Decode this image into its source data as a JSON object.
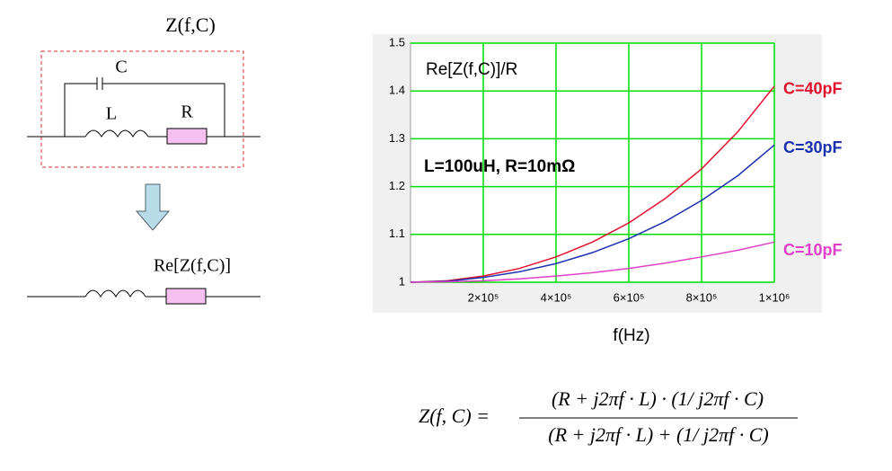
{
  "diagram": {
    "title": "Z(f,C)",
    "capacitor": "C",
    "inductor": "L",
    "resistor": "R",
    "result": "Re[Z(f,C)]"
  },
  "chart_data": {
    "type": "line",
    "annotations": [
      "Re[Z(f,C)]/R",
      "L=100uH, R=10mΩ"
    ],
    "x_label": "f(Hz)",
    "x": [
      0,
      100000,
      200000,
      300000,
      400000,
      500000,
      600000,
      700000,
      800000,
      900000,
      1000000
    ],
    "series": [
      {
        "name": "C=40pF",
        "color": "#e0102c",
        "values": [
          1,
          1.003,
          1.013,
          1.029,
          1.053,
          1.084,
          1.124,
          1.175,
          1.237,
          1.315,
          1.41
        ]
      },
      {
        "name": "C=30pF",
        "color": "#1a30b0",
        "values": [
          1,
          1.002,
          1.01,
          1.022,
          1.039,
          1.062,
          1.091,
          1.127,
          1.171,
          1.223,
          1.287
        ]
      },
      {
        "name": "C=10pF",
        "color": "#e040c8",
        "values": [
          1,
          1.001,
          1.003,
          1.007,
          1.013,
          1.02,
          1.029,
          1.04,
          1.053,
          1.067,
          1.084
        ]
      }
    ],
    "xlim": [
      0,
      1000000
    ],
    "ylim": [
      1,
      1.5
    ],
    "xticks": [
      {
        "value": 200000,
        "label": "2×10⁵"
      },
      {
        "value": 400000,
        "label": "4×10⁵"
      },
      {
        "value": 600000,
        "label": "6×10⁵"
      },
      {
        "value": 800000,
        "label": "8×10⁵"
      },
      {
        "value": 1000000,
        "label": "1×10⁶"
      }
    ],
    "yticks": [
      1,
      1.1,
      1.2,
      1.3,
      1.4,
      1.5
    ],
    "grid": true,
    "grid_color": "#00dd00"
  },
  "formula": {
    "lhs": "Z(f, C) =",
    "numerator": "(R + j2πf · L) · (1/ j2πf · C)",
    "denominator": "(R + j2πf · L) + (1/ j2πf · C)"
  }
}
